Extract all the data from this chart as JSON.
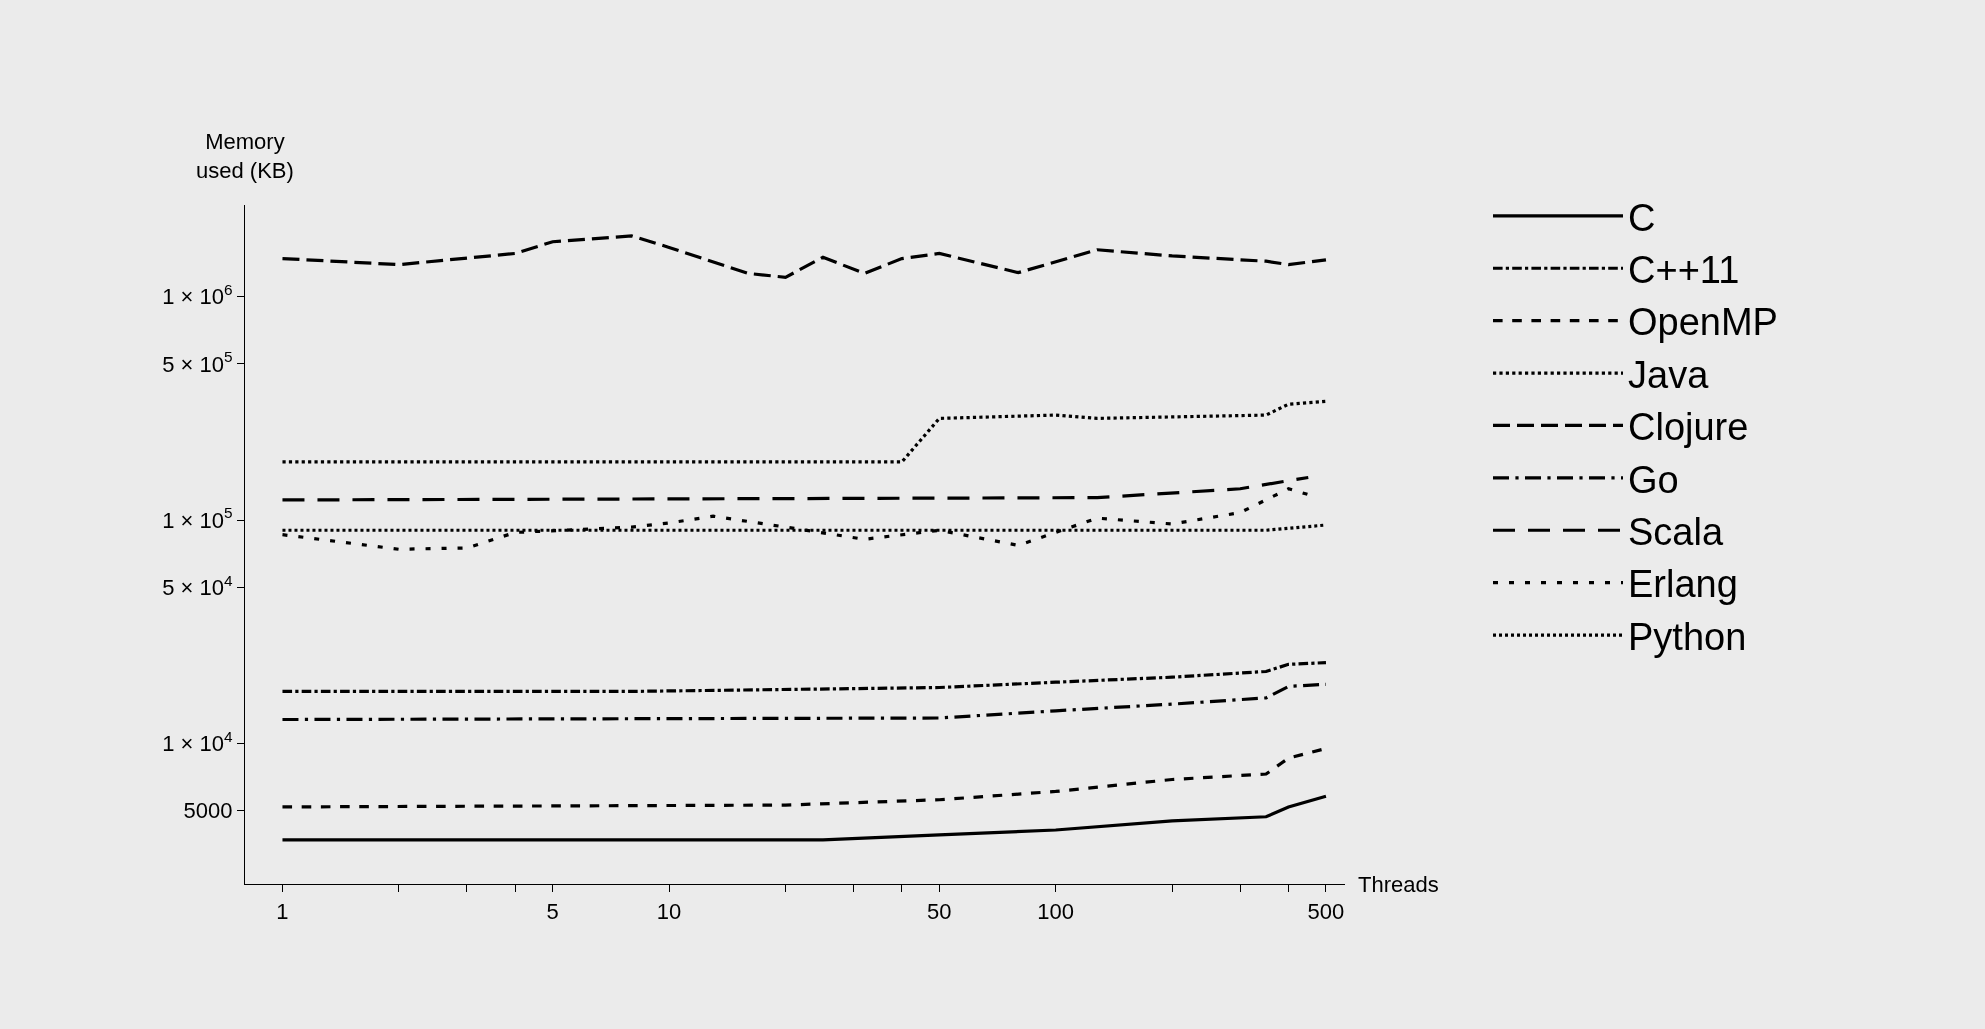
{
  "chart_data": {
    "type": "line",
    "xlabel": "Threads",
    "ylabel": "Memory used (KB)",
    "log": "xy",
    "grid": false,
    "legend": "right",
    "marker": "none",
    "xlim": [
      0.8,
      560
    ],
    "ylim": [
      2350,
      2570000
    ],
    "xticks": [
      1,
      {
        "value": 2,
        "label": null
      },
      {
        "value": 3,
        "label": null
      },
      {
        "value": 4,
        "label": null
      },
      5,
      10,
      {
        "value": 20,
        "label": null
      },
      {
        "value": 30,
        "label": null
      },
      {
        "value": 40,
        "label": null
      },
      50,
      100,
      {
        "value": 200,
        "label": null
      },
      {
        "value": 300,
        "label": null
      },
      {
        "value": 400,
        "label": null
      },
      500
    ],
    "yticks": [
      {
        "value": 5000,
        "label": "5000"
      },
      {
        "value": 10000,
        "label": "1 × 10$^{4}$"
      },
      {
        "value": 50000,
        "label": "5 × 10$^{4}$"
      },
      {
        "value": 100000,
        "label": "1 × 10$^{5}$"
      },
      {
        "value": 500000,
        "label": "5 × 10$^{5}$"
      },
      {
        "value": 1000000,
        "label": "1 × 10$^{6}$"
      }
    ],
    "series": [
      {
        "name": "C",
        "color": "#000000",
        "line_style": "solid",
        "x": [
          1,
          25,
          50,
          100,
          200,
          350,
          400,
          500
        ],
        "values": [
          3700,
          3700,
          3900,
          4100,
          4500,
          4700,
          5200,
          5800
        ]
      },
      {
        "name": "C++11",
        "color": "#000000",
        "line_style": "dashdot",
        "x": [
          1,
          8,
          50,
          100,
          200,
          350,
          400,
          500
        ],
        "values": [
          17100,
          17100,
          17800,
          18800,
          19800,
          21000,
          22600,
          23000
        ]
      },
      {
        "name": "OpenMP",
        "color": "#000000",
        "line_style": "dashed",
        "x": [
          1,
          20,
          50,
          100,
          200,
          350,
          400,
          500
        ],
        "values": [
          5200,
          5300,
          5600,
          6100,
          6900,
          7300,
          8600,
          9500
        ]
      },
      {
        "name": "Java",
        "color": "#000000",
        "line_style": "dotted",
        "x": [
          1,
          40,
          50,
          100,
          128,
          350,
          400,
          500
        ],
        "values": [
          182000,
          182000,
          285000,
          295000,
          285000,
          295000,
          330000,
          340000
        ]
      },
      {
        "name": "Clojure",
        "color": "#000000",
        "line_style": "longdash",
        "x": [
          1,
          2,
          4,
          5,
          8,
          10,
          16,
          20,
          25,
          32,
          40,
          50,
          80,
          128,
          200,
          350,
          400,
          500
        ],
        "values": [
          1480000,
          1390000,
          1560000,
          1760000,
          1870000,
          1660000,
          1270000,
          1220000,
          1500000,
          1270000,
          1480000,
          1560000,
          1280000,
          1620000,
          1520000,
          1440000,
          1390000,
          1460000
        ]
      },
      {
        "name": "Go",
        "color": "#000000",
        "line_style": "longdashdot",
        "x": [
          1,
          50,
          100,
          200,
          350,
          400,
          500
        ],
        "values": [
          12800,
          13000,
          14000,
          15000,
          16000,
          18000,
          18400
        ]
      },
      {
        "name": "Scala",
        "color": "#000000",
        "line_style": "sparsedash",
        "x": [
          1,
          32,
          128,
          300,
          400,
          450
        ],
        "values": [
          123000,
          125000,
          126000,
          138000,
          150000,
          155000
        ]
      },
      {
        "name": "Erlang",
        "color": "#000000",
        "line_style": "sparsedot",
        "x": [
          1,
          2,
          3,
          4,
          8,
          10,
          13,
          20,
          32,
          50,
          80,
          128,
          200,
          300,
          400,
          450
        ],
        "values": [
          86000,
          74000,
          75000,
          88000,
          93000,
          97000,
          104000,
          93000,
          82000,
          90000,
          77000,
          102000,
          96000,
          108000,
          138000,
          130000
        ]
      },
      {
        "name": "Python",
        "color": "#000000",
        "line_style": "densedot",
        "x": [
          1,
          350,
          500
        ],
        "values": [
          90000,
          90000,
          95000
        ]
      }
    ]
  }
}
